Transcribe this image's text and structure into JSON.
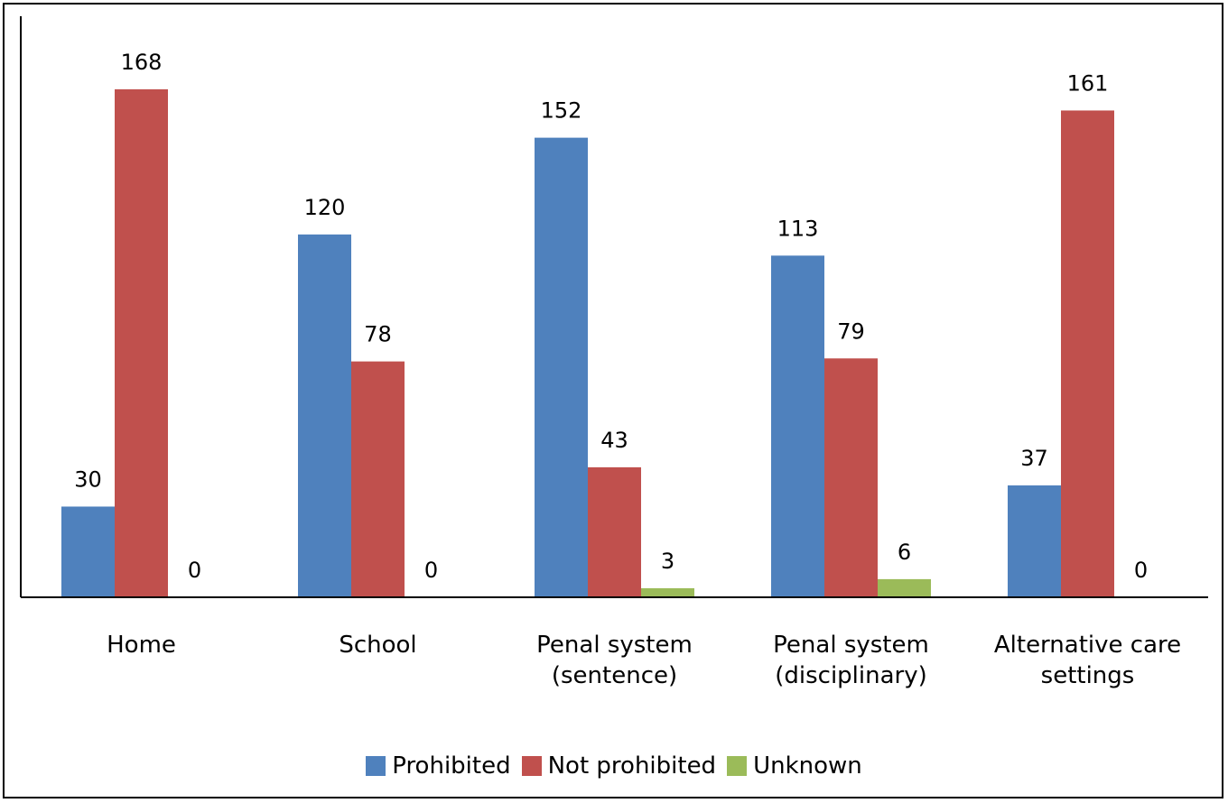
{
  "chart_data": {
    "type": "bar",
    "categories": [
      [
        "Home"
      ],
      [
        "School"
      ],
      [
        "Penal system",
        "(sentence)"
      ],
      [
        "Penal system",
        "(disciplinary)"
      ],
      [
        "Alternative care",
        "settings"
      ]
    ],
    "series": [
      {
        "name": "Prohibited",
        "color": "#4F81BD",
        "values": [
          30,
          120,
          152,
          113,
          37
        ]
      },
      {
        "name": "Not prohibited",
        "color": "#C0504D",
        "values": [
          168,
          78,
          43,
          79,
          161
        ]
      },
      {
        "name": "Unknown",
        "color": "#9BBB59",
        "values": [
          0,
          0,
          3,
          6,
          0
        ]
      }
    ],
    "ylim": [
      0,
      180
    ],
    "grid": false,
    "legend_position": "bottom"
  }
}
